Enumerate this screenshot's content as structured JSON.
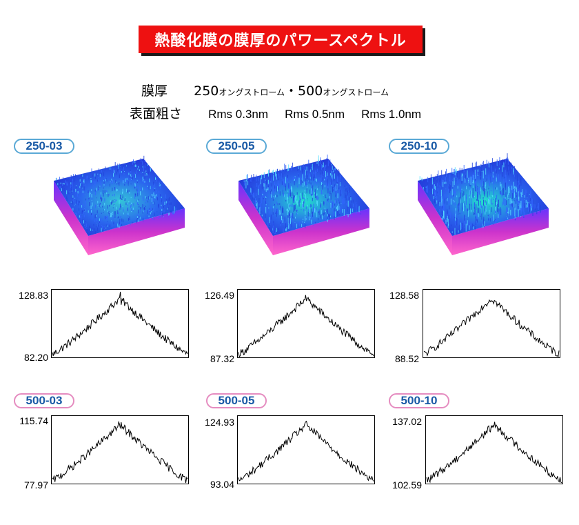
{
  "title": "熱酸化膜の膜厚のパワースペクトル",
  "spec": {
    "thickness_label": "膜厚",
    "thickness_a": "250",
    "unit_a": "オングストローム",
    "separator": "・",
    "thickness_b": "500",
    "unit_b": "オングストローム",
    "roughness_label": "表面粗さ",
    "rms": [
      "Rms 0.3nm",
      "Rms 0.5nm",
      "Rms 1.0nm"
    ]
  },
  "colors": {
    "banner": "#ee1111",
    "label_border_250": "#5aa9d6",
    "label_border_500": "#e58cc0",
    "label_text": "#1a5aa6"
  },
  "samples": [
    {
      "label": "250-03"
    },
    {
      "label": "250-05"
    },
    {
      "label": "250-10"
    },
    {
      "label": "500-03"
    },
    {
      "label": "500-05"
    },
    {
      "label": "500-10"
    }
  ],
  "chart_data": [
    {
      "type": "line",
      "title": "250-03",
      "ylim": [
        82.2,
        128.83
      ],
      "ymax_label": "128.83",
      "ymin_label": "82.20",
      "shape": "peak",
      "peak_value": 128.83,
      "base_value": 82.2,
      "spike": true
    },
    {
      "type": "line",
      "title": "250-05",
      "ylim": [
        87.32,
        126.49
      ],
      "ymax_label": "126.49",
      "ymin_label": "87.32",
      "shape": "peak",
      "peak_value": 126.49,
      "base_value": 87.32,
      "spike": false
    },
    {
      "type": "line",
      "title": "250-10",
      "ylim": [
        88.52,
        128.58
      ],
      "ymax_label": "128.58",
      "ymin_label": "88.52",
      "shape": "peak",
      "peak_value": 128.58,
      "base_value": 88.52,
      "spike": false
    },
    {
      "type": "line",
      "title": "500-03",
      "ylim": [
        77.97,
        115.74
      ],
      "ymax_label": "115.74",
      "ymin_label": "77.97",
      "shape": "peak",
      "peak_value": 115.74,
      "base_value": 77.97,
      "spike": false
    },
    {
      "type": "line",
      "title": "500-05",
      "ylim": [
        93.04,
        124.93
      ],
      "ymax_label": "124.93",
      "ymin_label": "93.04",
      "shape": "peak",
      "peak_value": 124.93,
      "base_value": 93.04,
      "spike": false
    },
    {
      "type": "line",
      "title": "500-10",
      "ylim": [
        102.59,
        137.02
      ],
      "ymax_label": "137.02",
      "ymin_label": "102.59",
      "shape": "peak",
      "peak_value": 137.02,
      "base_value": 102.59,
      "spike": false
    }
  ]
}
